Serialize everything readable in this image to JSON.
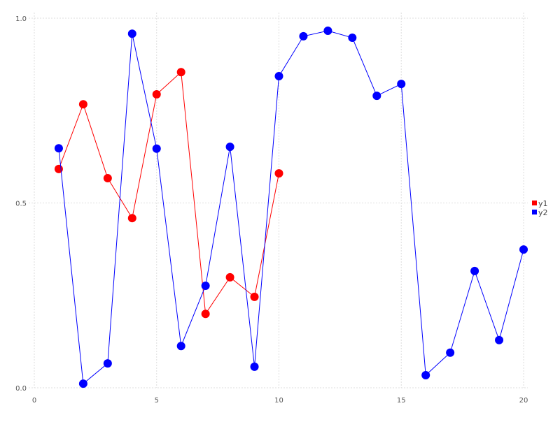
{
  "chart_data": {
    "type": "line",
    "title": "",
    "xlabel": "",
    "ylabel": "",
    "xlim": [
      0,
      20
    ],
    "ylim": [
      0,
      1.0
    ],
    "x_ticks": [
      "0",
      "5",
      "10",
      "15",
      "20"
    ],
    "y_ticks": [
      "0.0",
      "0.5",
      "1.0"
    ],
    "grid": true,
    "legend_position": "right",
    "series": [
      {
        "name": "y1",
        "color": "#ff0000",
        "x": [
          1,
          2,
          3,
          4,
          5,
          6,
          7,
          8,
          9,
          10
        ],
        "values": [
          0.592,
          0.767,
          0.567,
          0.459,
          0.794,
          0.854,
          0.2,
          0.299,
          0.246,
          0.58
        ]
      },
      {
        "name": "y2",
        "color": "#0000ff",
        "x": [
          1,
          2,
          3,
          4,
          5,
          6,
          7,
          8,
          9,
          10,
          11,
          12,
          13,
          14,
          15,
          16,
          17,
          18,
          19,
          20
        ],
        "values": [
          0.648,
          0.011,
          0.066,
          0.958,
          0.647,
          0.113,
          0.276,
          0.652,
          0.057,
          0.843,
          0.951,
          0.966,
          0.947,
          0.79,
          0.822,
          0.034,
          0.095,
          0.316,
          0.129,
          0.374
        ]
      }
    ]
  }
}
